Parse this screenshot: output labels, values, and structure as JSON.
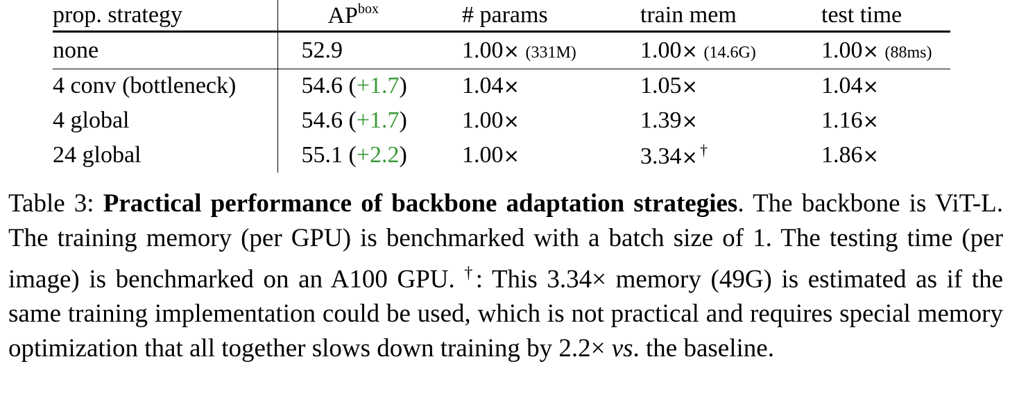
{
  "table": {
    "headers": {
      "strategy": "prop. strategy",
      "ap": "AP",
      "ap_sup": "box",
      "params": "# params",
      "train_mem": "train mem",
      "test_time": "test time"
    },
    "times_symbol": "×",
    "rows": [
      {
        "strategy": "none",
        "ap": "52.9",
        "ap_delta": "",
        "params": "1.00",
        "params_note": "(331M)",
        "train_mem": "1.00",
        "train_mem_note": "(14.6G)",
        "train_mem_mark": "",
        "test_time": "1.00",
        "test_time_note": "(88ms)"
      },
      {
        "strategy": "4 conv (bottleneck)",
        "ap": "54.6",
        "ap_delta": "+1.7",
        "params": "1.04",
        "train_mem": "1.05",
        "train_mem_mark": "",
        "test_time": "1.04"
      },
      {
        "strategy": "4 global",
        "ap": "54.6",
        "ap_delta": "+1.7",
        "params": "1.00",
        "train_mem": "1.39",
        "train_mem_mark": "",
        "test_time": "1.16"
      },
      {
        "strategy": "24 global",
        "ap": "55.1",
        "ap_delta": "+2.2",
        "params": "1.00",
        "train_mem": "3.34",
        "train_mem_mark": "†",
        "test_time": "1.86"
      }
    ],
    "delta_color": "#3a9a3a"
  },
  "caption": {
    "label": "Table 3: ",
    "title": "Practical performance of backbone adaptation strategies",
    "after_title": ". The backbone is ViT-L. The training memory (per GPU) is benchmarked with a batch size of 1. The testing time (per image) is benchmarked on an A100 GPU. ",
    "dagger": "†",
    "note_part1": ": This 3.34× memory (49G) is estimated as if the same training implementation could be used, which is not practical and requires special memory optimization that all together slows down training by 2.2× ",
    "vs": "vs",
    "note_end": ". the baseline."
  }
}
